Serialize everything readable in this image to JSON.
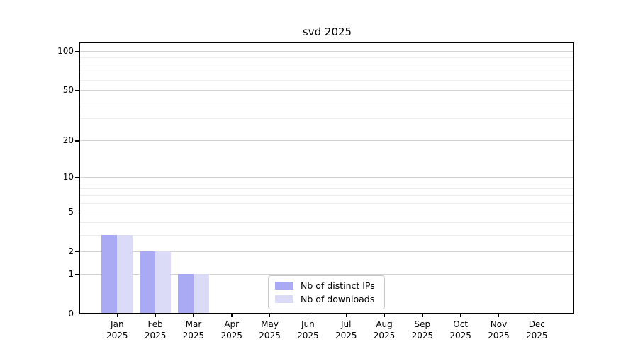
{
  "chart_data": {
    "type": "bar",
    "title": "svd 2025",
    "categories": [
      "Jan",
      "Feb",
      "Mar",
      "Apr",
      "May",
      "Jun",
      "Jul",
      "Aug",
      "Sep",
      "Oct",
      "Nov",
      "Dec"
    ],
    "year_label": "2025",
    "series": [
      {
        "name": "Nb of distinct IPs",
        "color": "#a9a9f4",
        "values": [
          3,
          2,
          1,
          0,
          0,
          0,
          0,
          0,
          0,
          0,
          0,
          0
        ]
      },
      {
        "name": "Nb of downloads",
        "color": "#dbdbf8",
        "values": [
          3,
          2,
          1,
          0,
          0,
          0,
          0,
          0,
          0,
          0,
          0,
          0
        ]
      }
    ],
    "xlabel": "",
    "ylabel": "",
    "yscale": "log1p",
    "ylim": [
      0,
      115
    ],
    "yticks": [
      0,
      1,
      2,
      5,
      10,
      20,
      50,
      100
    ],
    "minor_yticks": [
      3,
      4,
      6,
      7,
      8,
      9,
      30,
      40,
      60,
      70,
      80,
      90
    ],
    "grid": "horizontal-major-and-minor",
    "legend_position": "bottom-center-inside",
    "colors": {
      "major_grid": "#d2d2d2",
      "minor_grid": "#ededed",
      "spine": "#000000",
      "text": "#000000",
      "background": "#ffffff"
    }
  }
}
